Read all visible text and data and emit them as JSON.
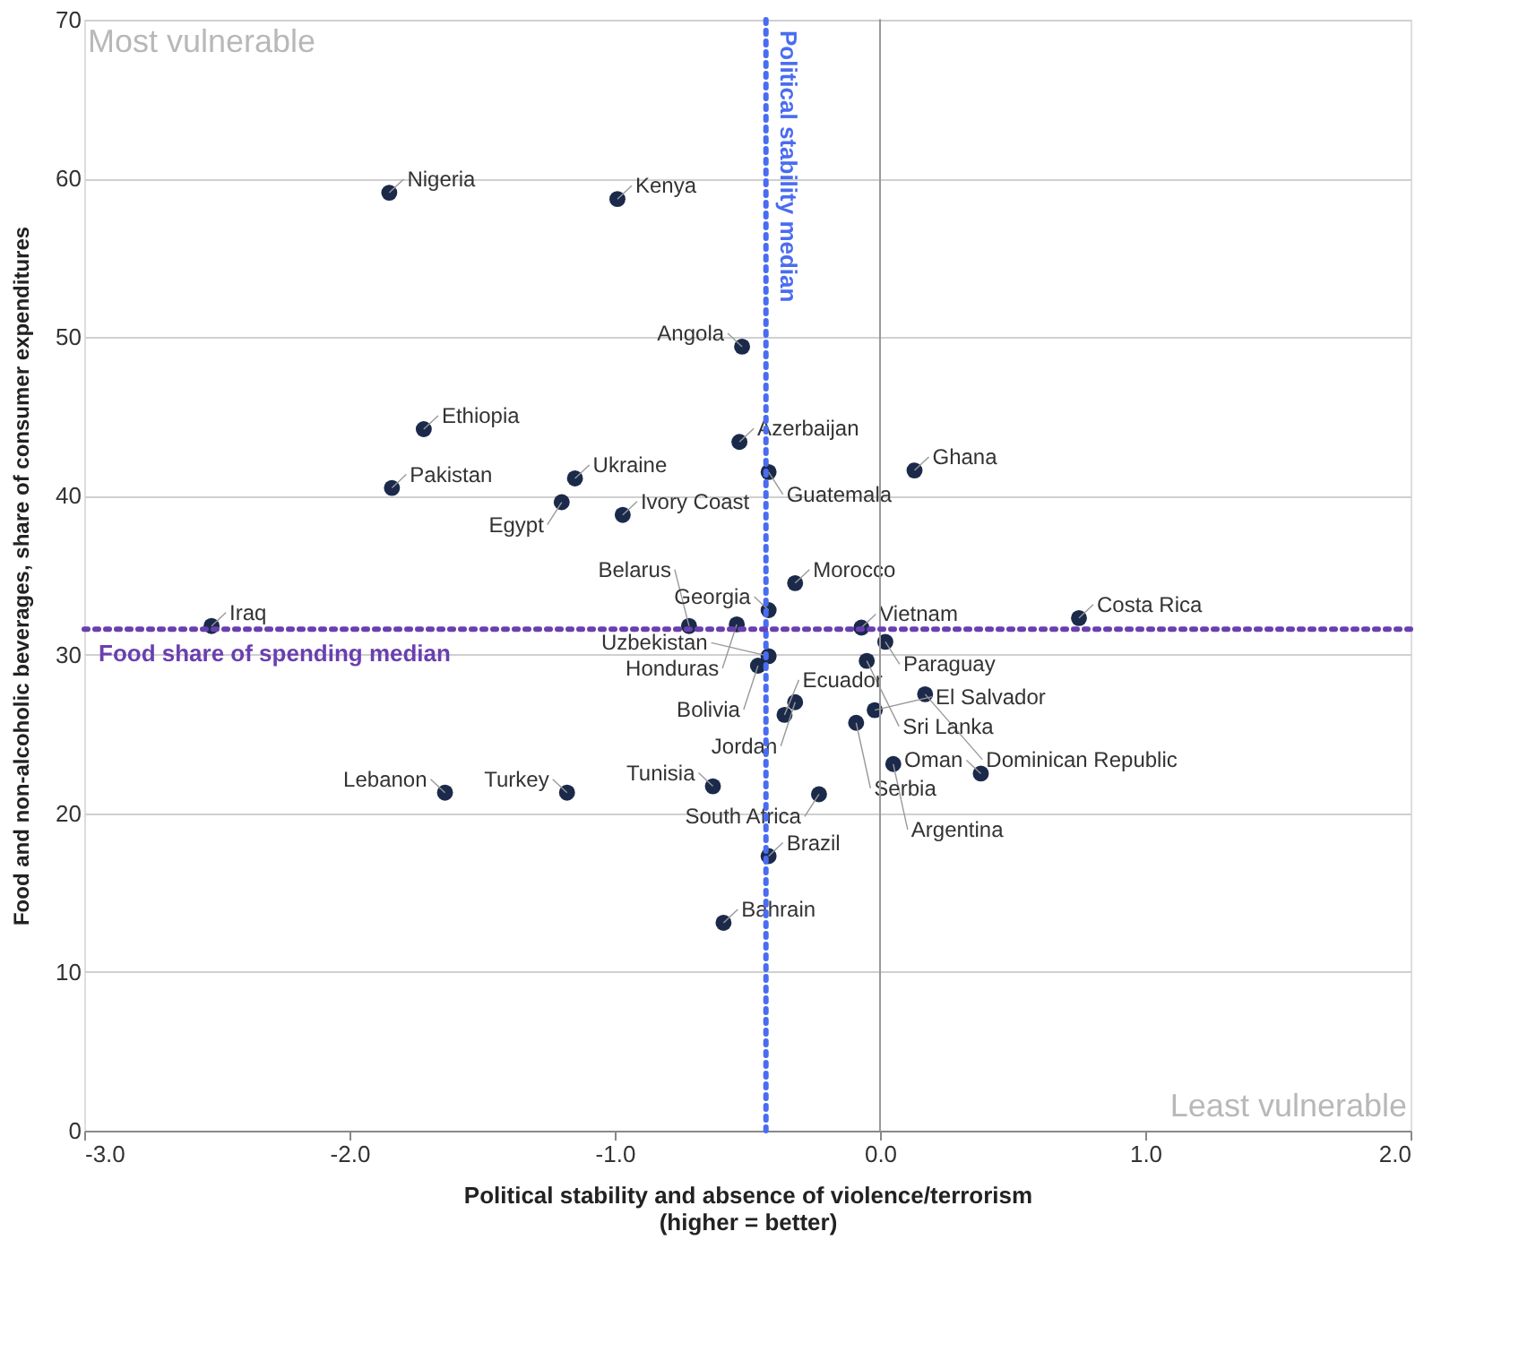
{
  "chart_data": {
    "type": "scatter",
    "xlabel": "Political stability and absence of violence/terrorism\n(higher = better)",
    "ylabel": "Food and non-alcoholic beverages, share of consumer expenditures",
    "xlim": [
      -3,
      2
    ],
    "xticks": [
      {
        "value": -3,
        "label": "-3.0"
      },
      {
        "value": -2,
        "label": "-2.0"
      },
      {
        "value": -1,
        "label": "-1.0"
      },
      {
        "value": 0,
        "label": "0.0"
      },
      {
        "value": 1,
        "label": "1.0"
      },
      {
        "value": 2,
        "label": "2.0"
      }
    ],
    "ylim": [
      0,
      70
    ],
    "yticks": [
      0,
      10,
      20,
      30,
      40,
      50,
      60,
      70
    ],
    "grid": "y",
    "legend": false,
    "marker": "circle",
    "series": [
      {
        "color": "#1b2a4a",
        "x": [
          -1.85,
          -0.99,
          -0.52,
          -1.72,
          -0.53,
          -0.42,
          0.13,
          -1.15,
          -1.84,
          -1.2,
          -0.97,
          -0.32,
          -0.42,
          -0.54,
          -0.07,
          0.75,
          -2.52,
          -0.72,
          0.02,
          -0.05,
          -0.46,
          -0.42,
          -0.32,
          -0.36,
          0.17,
          -0.02,
          -0.09,
          0.05,
          0.38,
          -0.23,
          -0.63,
          -1.18,
          -1.64,
          -0.42,
          -0.59
        ],
        "values": [
          59.1,
          58.7,
          49.4,
          44.2,
          43.4,
          41.5,
          41.6,
          41.1,
          40.5,
          39.6,
          38.8,
          34.5,
          32.8,
          31.9,
          31.7,
          32.3,
          31.8,
          31.8,
          30.8,
          29.6,
          29.3,
          29.9,
          27.0,
          26.2,
          27.5,
          26.5,
          25.7,
          23.1,
          22.5,
          21.2,
          21.7,
          21.3,
          21.3,
          17.3,
          13.1
        ],
        "value_labels": [
          "Nigeria",
          "Kenya",
          "Angola",
          "Ethiopia",
          "Azerbaijan",
          "Guatemala",
          "Ghana",
          "Ukraine",
          "Pakistan",
          "Egypt",
          "Ivory Coast",
          "Morocco",
          "Georgia",
          "Honduras",
          "Vietnam",
          "Costa Rica",
          "Iraq",
          "Belarus",
          "Paraguay",
          "Sri Lanka",
          "Bolivia",
          "Uzbekistan",
          "Jordan",
          "Ecuador",
          "Dominican Republic",
          "El Salvador",
          "Serbia",
          "Argentina",
          "Oman",
          "South Africa",
          "Tunisia",
          "Turkey",
          "Lebanon",
          "Brazil",
          "Bahrain"
        ]
      }
    ],
    "ref_lines": [
      {
        "axis": "x",
        "value": 0,
        "label": null,
        "color": "#999999",
        "line_style": "solid"
      },
      {
        "axis": "x",
        "value": -0.43,
        "label": "Political stability median",
        "color": "#4a6cf0",
        "line_style": "dotted"
      },
      {
        "axis": "y",
        "value": 31.6,
        "label": "Food share of spending median",
        "color": "#6a3fb0",
        "line_style": "dotted"
      }
    ],
    "annotations": [
      "Most vulnerable",
      "Least vulnerable"
    ]
  }
}
